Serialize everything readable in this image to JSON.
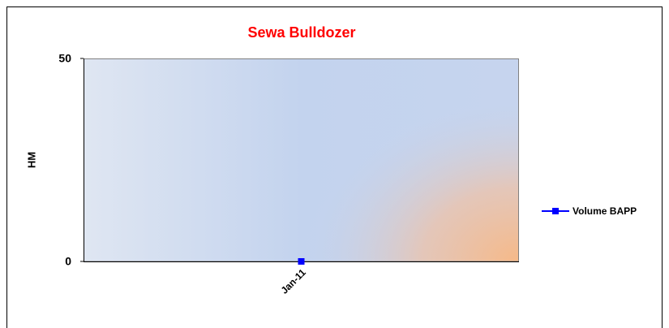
{
  "chart_data": {
    "type": "line",
    "title": "Sewa Bulldozer",
    "ylabel": "HM",
    "categories": [
      "Jan-11"
    ],
    "series": [
      {
        "name": "Volume BAPP",
        "color": "#0000ff",
        "values": [
          0
        ]
      }
    ],
    "ylim": [
      0,
      50
    ],
    "yticks": [
      0,
      50
    ],
    "grid": false,
    "legend": "right"
  }
}
